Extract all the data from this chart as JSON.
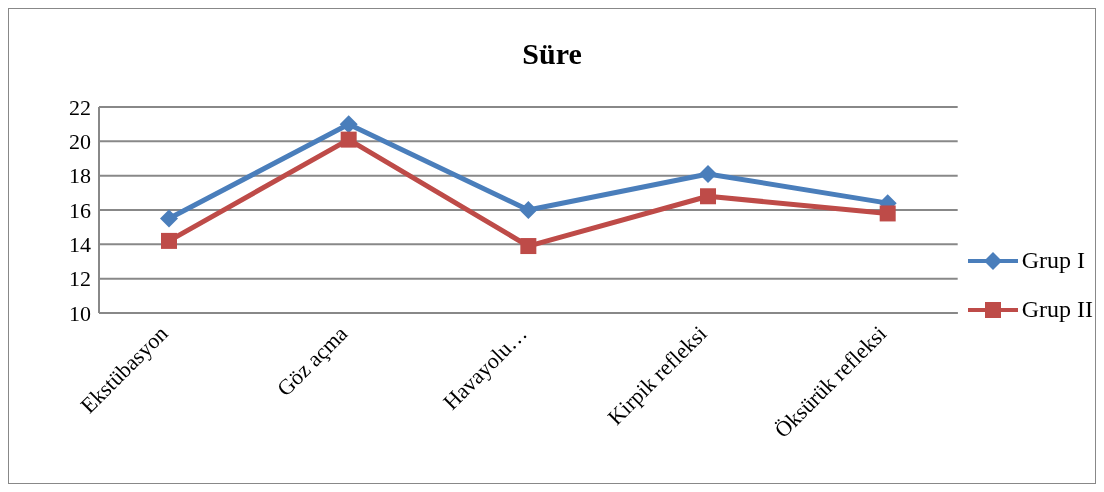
{
  "chart_data": {
    "type": "line",
    "title": "Süre",
    "categories": [
      "Ekstübasyon",
      "Göz açma",
      "Havayolu…",
      "Kirpik refleksi",
      "Öksürük refleksi"
    ],
    "series": [
      {
        "name": "Grup I",
        "color": "#4a7ebb",
        "values": [
          15.5,
          21.0,
          16.0,
          18.1,
          16.4
        ],
        "marker": "diamond"
      },
      {
        "name": "Grup II",
        "color": "#be4b48",
        "values": [
          14.2,
          20.1,
          13.9,
          16.8,
          15.8
        ],
        "marker": "square"
      }
    ],
    "ylim": [
      10,
      22
    ],
    "yticks": [
      10,
      12,
      14,
      16,
      18,
      20,
      22
    ],
    "grid": "y",
    "legend": "right"
  }
}
